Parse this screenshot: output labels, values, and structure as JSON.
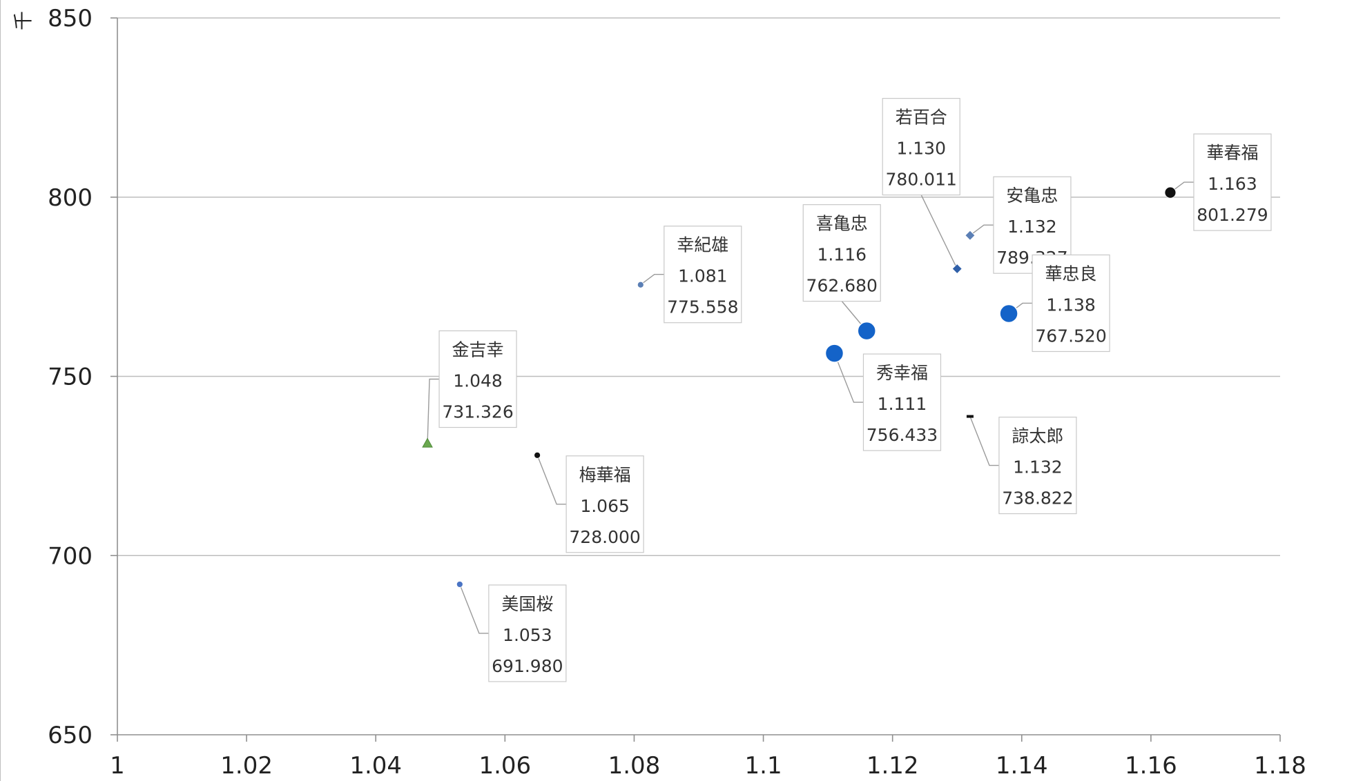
{
  "chart_data": {
    "type": "scatter",
    "title": "",
    "xlabel": "",
    "ylabel": "千",
    "xlim": [
      1,
      1.18
    ],
    "ylim": [
      650,
      850
    ],
    "x_ticks": [
      "1",
      "1.02",
      "1.04",
      "1.06",
      "1.08",
      "1.1",
      "1.12",
      "1.14",
      "1.16",
      "1.18"
    ],
    "y_ticks": [
      "650",
      "700",
      "750",
      "800",
      "850"
    ],
    "grid": "horizontal",
    "legend": "none",
    "points": [
      {
        "name": "華春福",
        "x_label": "1.163",
        "y_label": "801.279",
        "x": 1.163,
        "y": 801.279,
        "shape": "circle",
        "color": "#111111",
        "size": "medium",
        "label_side": "right"
      },
      {
        "name": "若百合",
        "x_label": "1.130",
        "y_label": "780.011",
        "x": 1.13,
        "y": 780.011,
        "shape": "diamond",
        "color": "#2f5fa8",
        "size": "small",
        "label_side": "top"
      },
      {
        "name": "安亀忠",
        "x_label": "1.132",
        "y_label": "789.327",
        "x": 1.132,
        "y": 789.327,
        "shape": "diamond",
        "color": "#5b7fb5",
        "size": "small",
        "label_side": "right"
      },
      {
        "name": "喜亀忠",
        "x_label": "1.116",
        "y_label": "762.680",
        "x": 1.116,
        "y": 762.68,
        "shape": "circle",
        "color": "#1463c8",
        "size": "large",
        "label_side": "top-left"
      },
      {
        "name": "華忠良",
        "x_label": "1.138",
        "y_label": "767.520",
        "x": 1.138,
        "y": 767.52,
        "shape": "circle",
        "color": "#1463c8",
        "size": "large",
        "label_side": "right"
      },
      {
        "name": "幸紀雄",
        "x_label": "1.081",
        "y_label": "775.558",
        "x": 1.081,
        "y": 775.558,
        "shape": "circle",
        "color": "#5b7fb5",
        "size": "tiny",
        "label_side": "right"
      },
      {
        "name": "秀幸福",
        "x_label": "1.111",
        "y_label": "756.433",
        "x": 1.111,
        "y": 756.433,
        "shape": "circle",
        "color": "#1463c8",
        "size": "large",
        "label_side": "bottom-right"
      },
      {
        "name": "金吉幸",
        "x_label": "1.048",
        "y_label": "731.326",
        "x": 1.048,
        "y": 731.326,
        "shape": "triangle",
        "color": "#6aa84f",
        "size": "small",
        "label_side": "top-right"
      },
      {
        "name": "諒太郎",
        "x_label": "1.132",
        "y_label": "738.822",
        "x": 1.132,
        "y": 738.822,
        "shape": "dash",
        "color": "#111111",
        "size": "tiny",
        "label_side": "bottom-right"
      },
      {
        "name": "梅華福",
        "x_label": "1.065",
        "y_label": "728.000",
        "x": 1.065,
        "y": 728.0,
        "shape": "circle",
        "color": "#111111",
        "size": "tiny",
        "label_side": "bottom-right"
      },
      {
        "name": "美国桜",
        "x_label": "1.053",
        "y_label": "691.980",
        "x": 1.053,
        "y": 691.98,
        "shape": "circle",
        "color": "#4a74c4",
        "size": "tiny",
        "label_side": "bottom-right"
      }
    ]
  }
}
